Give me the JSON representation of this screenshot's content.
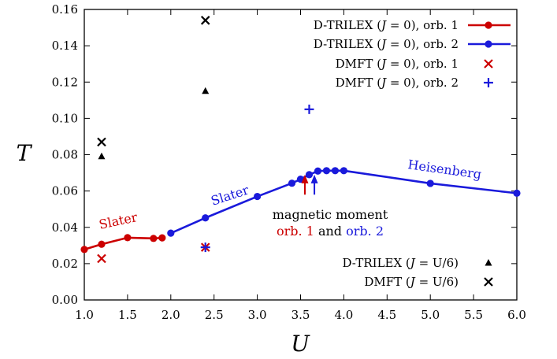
{
  "chart_data": {
    "type": "line",
    "title": "",
    "xlabel": "U",
    "ylabel": "T",
    "xlim": [
      1.0,
      6.0
    ],
    "ylim": [
      0.0,
      0.16
    ],
    "xticks": [
      "1.0",
      "1.5",
      "2.0",
      "2.5",
      "3.0",
      "3.5",
      "4.0",
      "4.5",
      "5.0",
      "5.5",
      "6.0"
    ],
    "yticks": [
      "0.00",
      "0.02",
      "0.04",
      "0.06",
      "0.08",
      "0.10",
      "0.12",
      "0.14",
      "0.16"
    ],
    "grid": false,
    "series": [
      {
        "name": "D-TRILEX (J = 0), orb. 1",
        "style": "line-dot",
        "color": "#cc0000",
        "points": [
          [
            1.0,
            0.0278
          ],
          [
            1.2,
            0.0307
          ],
          [
            1.5,
            0.0343
          ],
          [
            1.8,
            0.0339
          ],
          [
            1.9,
            0.0342
          ]
        ]
      },
      {
        "name": "D-TRILEX (J = 0), orb. 2",
        "style": "line-dot",
        "color": "#1a1adb",
        "points": [
          [
            2.0,
            0.0368
          ],
          [
            2.4,
            0.0452
          ],
          [
            3.0,
            0.057
          ],
          [
            3.4,
            0.0643
          ],
          [
            3.5,
            0.0665
          ],
          [
            3.6,
            0.069
          ],
          [
            3.7,
            0.071
          ],
          [
            3.8,
            0.0712
          ],
          [
            3.9,
            0.0712
          ],
          [
            4.0,
            0.0712
          ],
          [
            5.0,
            0.0642
          ],
          [
            6.0,
            0.0588
          ]
        ]
      },
      {
        "name": "DMFT (J = 0), orb. 1",
        "style": "x-marker",
        "color": "#cc0000",
        "points": [
          [
            1.2,
            0.0228
          ],
          [
            2.4,
            0.029
          ]
        ]
      },
      {
        "name": "DMFT (J = 0), orb. 2",
        "style": "plus-marker",
        "color": "#1a1adb",
        "points": [
          [
            2.4,
            0.029
          ],
          [
            3.6,
            0.105
          ]
        ]
      },
      {
        "name": "D-TRILEX (J = U/6)",
        "style": "triangle-marker",
        "color": "#000000",
        "points": [
          [
            1.2,
            0.079
          ],
          [
            2.4,
            0.115
          ]
        ]
      },
      {
        "name": "DMFT (J = U/6)",
        "style": "x-marker",
        "color": "#000000",
        "points": [
          [
            1.2,
            0.087
          ],
          [
            2.4,
            0.154
          ]
        ]
      }
    ],
    "annotations": {
      "slater_red": {
        "text": "Slater",
        "color": "#cc0000"
      },
      "slater_blue": {
        "text": "Slater",
        "color": "#1a1adb"
      },
      "heisenberg": {
        "text": "Heisenberg",
        "color": "#1a1adb"
      },
      "moment_line1": "magnetic moment",
      "moment_orb1": "orb. 1",
      "moment_and": "and",
      "moment_orb2": "orb. 2",
      "arrow_orb1": {
        "x": 3.55,
        "from": 0.058,
        "to": 0.069,
        "color": "#cc0000"
      },
      "arrow_orb2": {
        "x": 3.66,
        "from": 0.058,
        "to": 0.069,
        "color": "#1a1adb"
      }
    },
    "legend": {
      "top_placement": "top-right",
      "bottom_placement": "bottom-right",
      "top_entries": [
        {
          "pre": "D-TRILEX (",
          "var": "J",
          "post": " = 0), orb. 1"
        },
        {
          "pre": "D-TRILEX (",
          "var": "J",
          "post": " = 0), orb. 2"
        },
        {
          "pre": "DMFT (",
          "var": "J",
          "post": " = 0), orb. 1"
        },
        {
          "pre": "DMFT (",
          "var": "J",
          "post": " = 0), orb. 2"
        }
      ],
      "bottom_entries": [
        {
          "pre": "D-TRILEX (",
          "var": "J",
          "post": " = U/6)"
        },
        {
          "pre": "DMFT (",
          "var": "J",
          "post": " = U/6)"
        }
      ]
    }
  }
}
